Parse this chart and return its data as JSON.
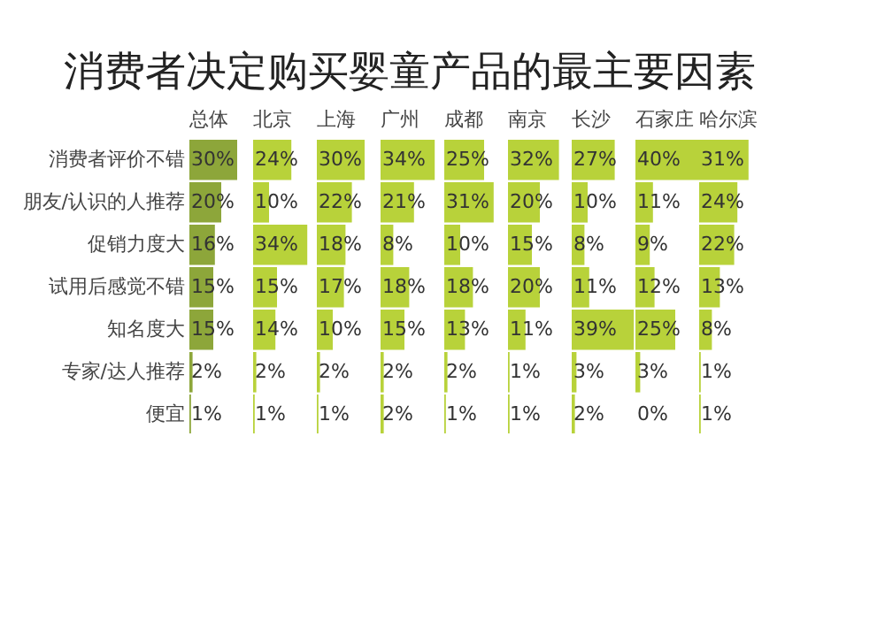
{
  "chart_data": [
    {
      "type": "other",
      "title": "消费者决定购买婴童产品的最主要因素"
    },
    {
      "type": "bar",
      "orientation": "horizontal",
      "title": "总体",
      "color": "#8da63a",
      "tick_labels": "y",
      "categories": [
        "消费者评价不错",
        "朋友/认识的人推荐",
        "促销力度大",
        "试用后感觉不错",
        "知名度大",
        "专家/达人推荐",
        "便宜"
      ],
      "values": [
        30,
        20,
        16,
        15,
        15,
        2,
        1
      ],
      "value_labels": [
        "30%",
        "20%",
        "16%",
        "15%",
        "15%",
        "2%",
        "1%"
      ]
    },
    {
      "type": "bar",
      "orientation": "horizontal",
      "title": "北京",
      "color": "#b8d23a",
      "tick_labels": false,
      "categories": [
        "消费者评价不错",
        "朋友/认识的人推荐",
        "促销力度大",
        "试用后感觉不错",
        "知名度大",
        "专家/达人推荐",
        "便宜"
      ],
      "values": [
        24,
        10,
        34,
        15,
        14,
        2,
        1
      ],
      "value_labels": [
        "24%",
        "10%",
        "34%",
        "15%",
        "14%",
        "2%",
        "1%"
      ]
    },
    {
      "type": "bar",
      "orientation": "horizontal",
      "title": "上海",
      "color": "#b8d23a",
      "tick_labels": false,
      "categories": [
        "消费者评价不错",
        "朋友/认识的人推荐",
        "促销力度大",
        "试用后感觉不错",
        "知名度大",
        "专家/达人推荐",
        "便宜"
      ],
      "values": [
        30,
        22,
        18,
        17,
        10,
        2,
        1
      ],
      "value_labels": [
        "30%",
        "22%",
        "18%",
        "17%",
        "10%",
        "2%",
        "1%"
      ]
    },
    {
      "type": "bar",
      "orientation": "horizontal",
      "title": "广州",
      "color": "#b8d23a",
      "tick_labels": false,
      "categories": [
        "消费者评价不错",
        "朋友/认识的人推荐",
        "促销力度大",
        "试用后感觉不错",
        "知名度大",
        "专家/达人推荐",
        "便宜"
      ],
      "values": [
        34,
        21,
        8,
        18,
        15,
        2,
        2
      ],
      "value_labels": [
        "34%",
        "21%",
        "8%",
        "18%",
        "15%",
        "2%",
        "2%"
      ]
    },
    {
      "type": "bar",
      "orientation": "horizontal",
      "title": "成都",
      "color": "#b8d23a",
      "tick_labels": false,
      "categories": [
        "消费者评价不错",
        "朋友/认识的人推荐",
        "促销力度大",
        "试用后感觉不错",
        "知名度大",
        "专家/达人推荐",
        "便宜"
      ],
      "values": [
        25,
        31,
        10,
        18,
        13,
        2,
        1
      ],
      "value_labels": [
        "25%",
        "31%",
        "10%",
        "18%",
        "13%",
        "2%",
        "1%"
      ]
    },
    {
      "type": "bar",
      "orientation": "horizontal",
      "title": "南京",
      "color": "#b8d23a",
      "tick_labels": false,
      "categories": [
        "消费者评价不错",
        "朋友/认识的人推荐",
        "促销力度大",
        "试用后感觉不错",
        "知名度大",
        "专家/达人推荐",
        "便宜"
      ],
      "values": [
        32,
        20,
        15,
        20,
        11,
        1,
        1
      ],
      "value_labels": [
        "32%",
        "20%",
        "15%",
        "20%",
        "11%",
        "1%",
        "1%"
      ]
    },
    {
      "type": "bar",
      "orientation": "horizontal",
      "title": "长沙",
      "color": "#b8d23a",
      "tick_labels": false,
      "categories": [
        "消费者评价不错",
        "朋友/认识的人推荐",
        "促销力度大",
        "试用后感觉不错",
        "知名度大",
        "专家/达人推荐",
        "便宜"
      ],
      "values": [
        27,
        10,
        8,
        11,
        39,
        3,
        2
      ],
      "value_labels": [
        "27%",
        "10%",
        "8%",
        "11%",
        "39%",
        "3%",
        "2%"
      ]
    },
    {
      "type": "bar",
      "orientation": "horizontal",
      "title": "石家庄",
      "color": "#b8d23a",
      "tick_labels": false,
      "categories": [
        "消费者评价不错",
        "朋友/认识的人推荐",
        "促销力度大",
        "试用后感觉不错",
        "知名度大",
        "专家/达人推荐",
        "便宜"
      ],
      "values": [
        40,
        11,
        9,
        12,
        25,
        3,
        0
      ],
      "value_labels": [
        "40%",
        "11%",
        "9%",
        "12%",
        "25%",
        "3%",
        "0%"
      ]
    },
    {
      "type": "bar",
      "orientation": "horizontal",
      "title": "哈尔滨",
      "color": "#b8d23a",
      "tick_labels": false,
      "categories": [
        "消费者评价不错",
        "朋友/认识的人推荐",
        "促销力度大",
        "试用后感觉不错",
        "知名度大",
        "专家/达人推荐",
        "便宜"
      ],
      "values": [
        31,
        24,
        22,
        13,
        8,
        1,
        1
      ],
      "value_labels": [
        "31%",
        "24%",
        "22%",
        "13%",
        "8%",
        "1%",
        "1%"
      ]
    }
  ]
}
